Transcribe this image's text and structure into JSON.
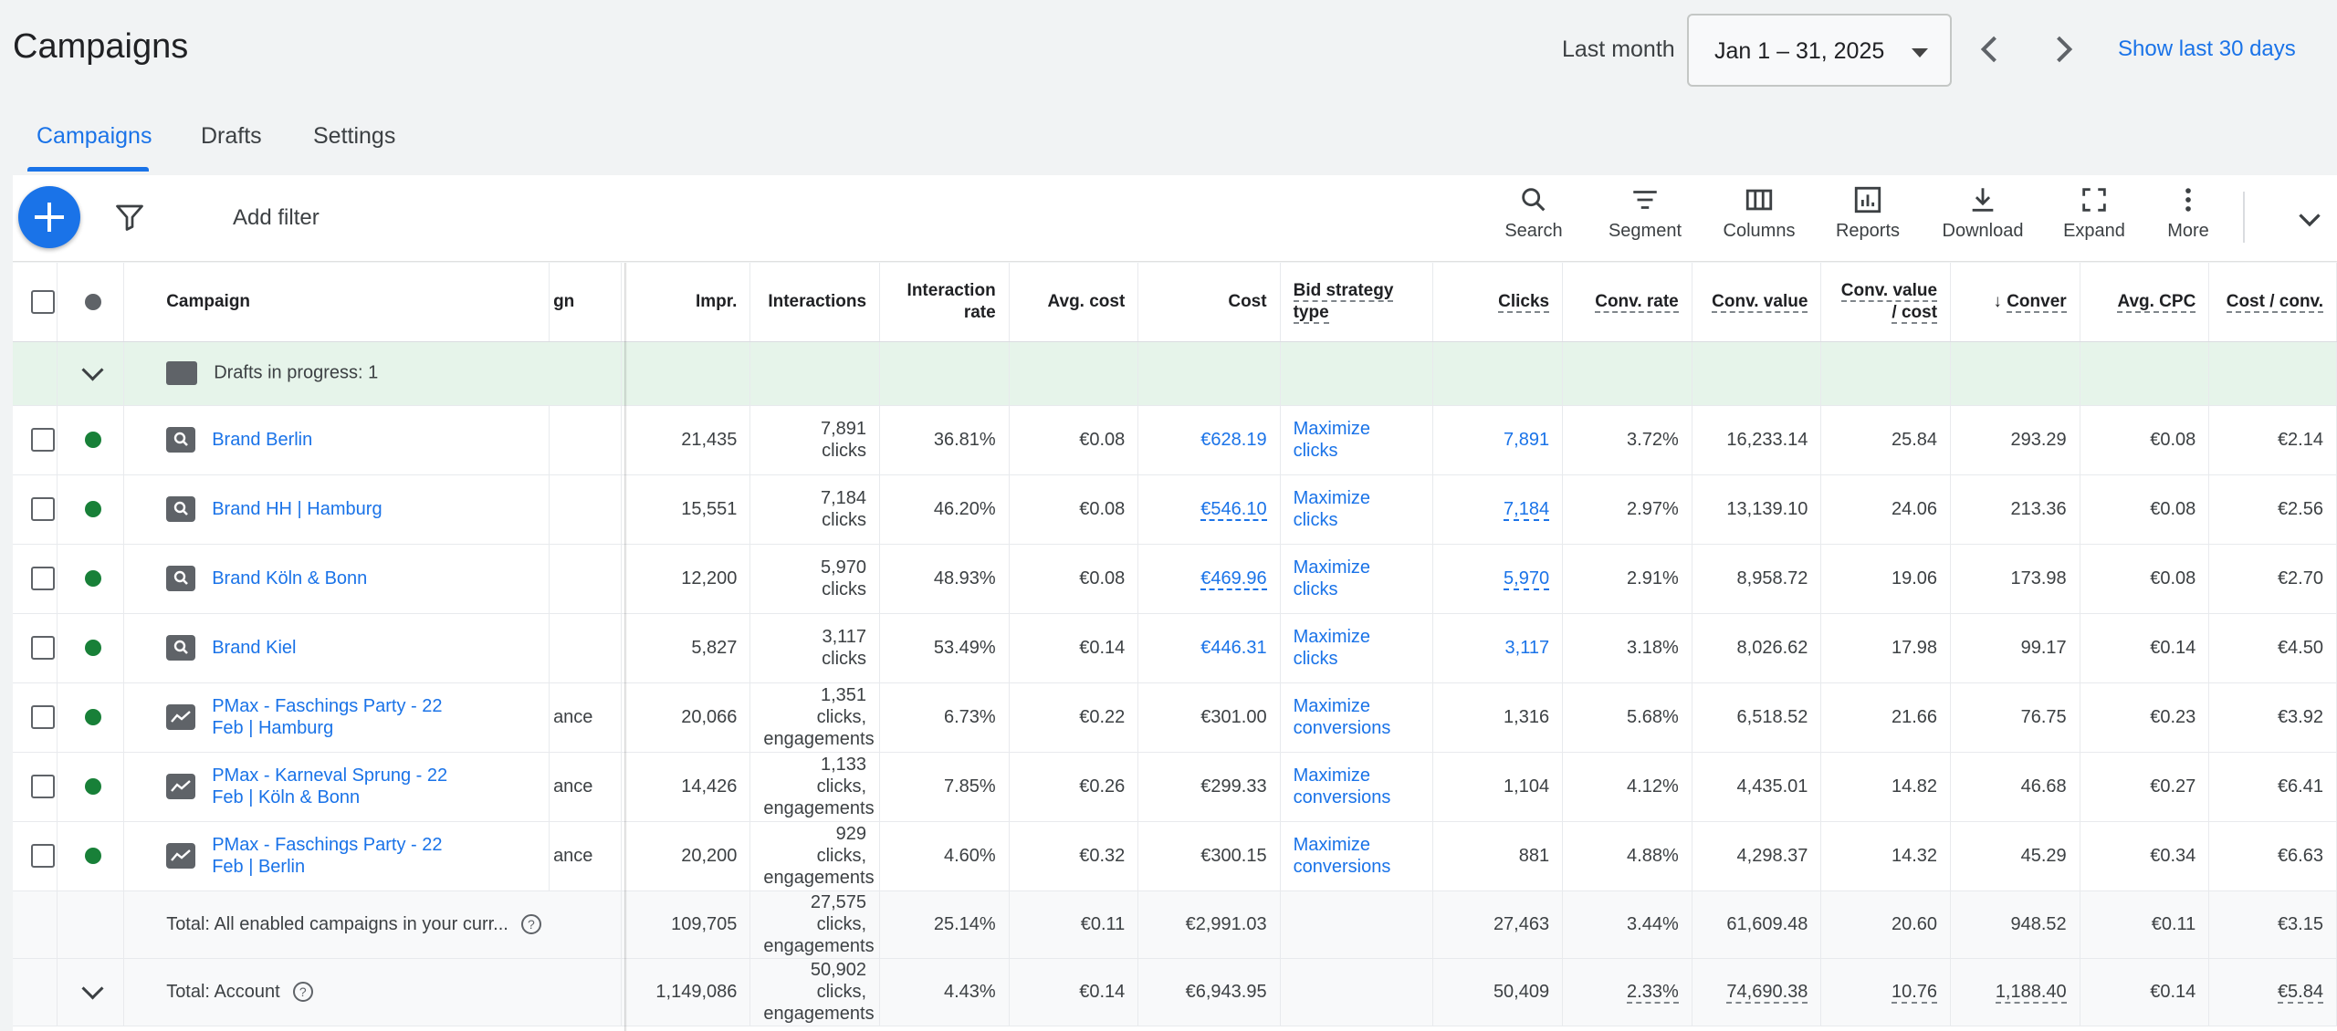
{
  "header": {
    "title": "Campaigns",
    "period_label": "Last month",
    "date_range": "Jan 1 – 31, 2025",
    "show_last": "Show last 30 days"
  },
  "tabs": [
    {
      "label": "Campaigns",
      "active": true
    },
    {
      "label": "Drafts"
    },
    {
      "label": "Settings"
    }
  ],
  "toolbar": {
    "add_filter": "Add filter",
    "tools": [
      {
        "label": "Search",
        "icon": "search-icon"
      },
      {
        "label": "Segment",
        "icon": "segment-icon"
      },
      {
        "label": "Columns",
        "icon": "columns-icon"
      },
      {
        "label": "Reports",
        "icon": "reports-icon"
      },
      {
        "label": "Download",
        "icon": "download-icon"
      },
      {
        "label": "Expand",
        "icon": "expand-icon"
      },
      {
        "label": "More",
        "icon": "more-vert-icon"
      }
    ]
  },
  "table": {
    "columns": {
      "campaign": "Campaign",
      "type_partial": "gn",
      "impr": "Impr.",
      "interactions": "Interactions",
      "interaction_rate_1": "Interaction",
      "interaction_rate_2": "rate",
      "avg_cost": "Avg. cost",
      "cost": "Cost",
      "bid_strategy_1": "Bid strategy",
      "bid_strategy_2": "type",
      "clicks": "Clicks",
      "conv_rate": "Conv. rate",
      "conv_value": "Conv. value",
      "conv_value_cost_1": "Conv. value",
      "conv_value_cost_2": "/ cost",
      "conversions": "Conver",
      "avg_cpc": "Avg. CPC",
      "cost_conv": "Cost / conv."
    },
    "drafts_row": "Drafts in progress: 1",
    "rows": [
      {
        "name": "Brand Berlin",
        "type": "search",
        "type_label": "",
        "impr": "21,435",
        "inter1": "7,891",
        "inter2": "clicks",
        "inter3": "",
        "rate": "36.81%",
        "avg_cost": "€0.08",
        "cost": "€628.19",
        "bid1": "Maximize",
        "bid2": "clicks",
        "clicks": "7,891",
        "conv_rate": "3.72%",
        "conv_value": "16,233.14",
        "cvc": "25.84",
        "conv": "293.29",
        "cpc": "€0.08",
        "cost_conv": "€2.14"
      },
      {
        "name": "Brand HH | Hamburg",
        "type": "search",
        "type_label": "",
        "impr": "15,551",
        "inter1": "7,184",
        "inter2": "clicks",
        "inter3": "",
        "rate": "46.20%",
        "avg_cost": "€0.08",
        "cost": "€546.10",
        "bid1": "Maximize",
        "bid2": "clicks",
        "clicks": "7,184",
        "conv_rate": "2.97%",
        "conv_value": "13,139.10",
        "cvc": "24.06",
        "conv": "213.36",
        "cpc": "€0.08",
        "cost_conv": "€2.56"
      },
      {
        "name": "Brand Köln & Bonn",
        "type": "search",
        "type_label": "",
        "impr": "12,200",
        "inter1": "5,970",
        "inter2": "clicks",
        "inter3": "",
        "rate": "48.93%",
        "avg_cost": "€0.08",
        "cost": "€469.96",
        "bid1": "Maximize",
        "bid2": "clicks",
        "clicks": "5,970",
        "conv_rate": "2.91%",
        "conv_value": "8,958.72",
        "cvc": "19.06",
        "conv": "173.98",
        "cpc": "€0.08",
        "cost_conv": "€2.70"
      },
      {
        "name": "Brand Kiel",
        "type": "search",
        "type_label": "",
        "impr": "5,827",
        "inter1": "3,117",
        "inter2": "clicks",
        "inter3": "",
        "rate": "53.49%",
        "avg_cost": "€0.14",
        "cost": "€446.31",
        "bid1": "Maximize",
        "bid2": "clicks",
        "clicks": "3,117",
        "conv_rate": "3.18%",
        "conv_value": "8,026.62",
        "cvc": "17.98",
        "conv": "99.17",
        "cpc": "€0.14",
        "cost_conv": "€4.50"
      },
      {
        "name": "PMax - Faschings Party - 22 Feb | Hamburg",
        "type": "pmax",
        "type_label": "ance",
        "impr": "20,066",
        "inter1": "1,351",
        "inter2": "clicks,",
        "inter3": "engagements",
        "rate": "6.73%",
        "avg_cost": "€0.22",
        "cost": "€301.00",
        "bid1": "Maximize",
        "bid2": "conversions",
        "clicks": "1,316",
        "conv_rate": "5.68%",
        "conv_value": "6,518.52",
        "cvc": "21.66",
        "conv": "76.75",
        "cpc": "€0.23",
        "cost_conv": "€3.92"
      },
      {
        "name": "PMax - Karneval Sprung - 22 Feb | Köln & Bonn",
        "type": "pmax",
        "type_label": "ance",
        "impr": "14,426",
        "inter1": "1,133",
        "inter2": "clicks,",
        "inter3": "engagements",
        "rate": "7.85%",
        "avg_cost": "€0.26",
        "cost": "€299.33",
        "bid1": "Maximize",
        "bid2": "conversions",
        "clicks": "1,104",
        "conv_rate": "4.12%",
        "conv_value": "4,435.01",
        "cvc": "14.82",
        "conv": "46.68",
        "cpc": "€0.27",
        "cost_conv": "€6.41"
      },
      {
        "name": "PMax - Faschings Party - 22 Feb | Berlin",
        "type": "pmax",
        "type_label": "ance",
        "impr": "20,200",
        "inter1": "929",
        "inter2": "clicks,",
        "inter3": "engagements",
        "rate": "4.60%",
        "avg_cost": "€0.32",
        "cost": "€300.15",
        "bid1": "Maximize",
        "bid2": "conversions",
        "clicks": "881",
        "conv_rate": "4.88%",
        "conv_value": "4,298.37",
        "cvc": "14.32",
        "conv": "45.29",
        "cpc": "€0.34",
        "cost_conv": "€6.63"
      }
    ],
    "totals": [
      {
        "label": "Total: All enabled campaigns in your curr...",
        "impr": "109,705",
        "inter1": "27,575",
        "inter2": "clicks,",
        "inter3": "engagements",
        "rate": "25.14%",
        "avg_cost": "€0.11",
        "cost": "€2,991.03",
        "clicks": "27,463",
        "conv_rate": "3.44%",
        "conv_value": "61,609.48",
        "cvc": "20.60",
        "conv": "948.52",
        "cpc": "€0.11",
        "cost_conv": "€3.15"
      },
      {
        "label": "Total: Account",
        "impr": "1,149,086",
        "inter1": "50,902",
        "inter2": "clicks,",
        "inter3": "engagements",
        "rate": "4.43%",
        "avg_cost": "€0.14",
        "cost": "€6,943.95",
        "clicks": "50,409",
        "conv_rate": "2.33%",
        "conv_value": "74,690.38",
        "cvc": "10.76",
        "conv": "1,188.40",
        "cpc": "€0.14",
        "cost_conv": "€5.84"
      }
    ]
  },
  "colors": {
    "accent": "#1a73e8",
    "enabled": "#188038",
    "drafts_bg": "#e6f4ea"
  }
}
